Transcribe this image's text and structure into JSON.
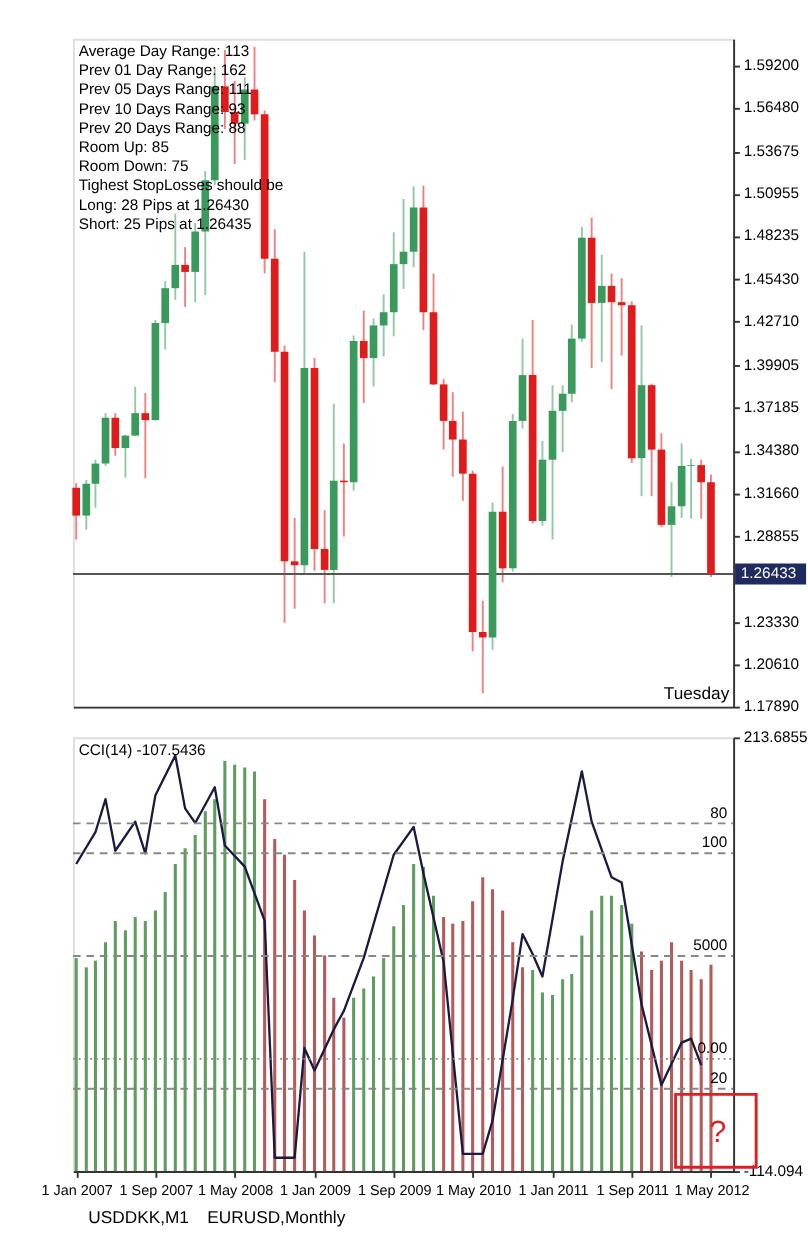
{
  "chart_data": [
    {
      "type": "candlestick",
      "x": [
        "2007-01",
        "2007-02",
        "2007-03",
        "2007-04",
        "2007-05",
        "2007-06",
        "2007-07",
        "2007-08",
        "2007-09",
        "2007-10",
        "2007-11",
        "2007-12",
        "2008-01",
        "2008-02",
        "2008-03",
        "2008-04",
        "2008-05",
        "2008-06",
        "2008-07",
        "2008-08",
        "2008-09",
        "2008-10",
        "2008-11",
        "2008-12",
        "2009-01",
        "2009-02",
        "2009-03",
        "2009-04",
        "2009-05",
        "2009-06",
        "2009-07",
        "2009-08",
        "2009-09",
        "2009-10",
        "2009-11",
        "2009-12",
        "2010-01",
        "2010-02",
        "2010-03",
        "2010-04",
        "2010-05",
        "2010-06",
        "2010-07",
        "2010-08",
        "2010-09",
        "2010-10",
        "2010-11",
        "2010-12",
        "2011-01",
        "2011-02",
        "2011-03",
        "2011-04",
        "2011-05",
        "2011-06",
        "2011-07",
        "2011-08",
        "2011-09",
        "2011-10",
        "2011-11",
        "2011-12",
        "2012-01",
        "2012-02",
        "2012-03",
        "2012-04",
        "2012-05"
      ],
      "ohlc": [
        [
          1.3199,
          1.3229,
          1.2865,
          1.302
        ],
        [
          1.302,
          1.325,
          1.293,
          1.3225
        ],
        [
          1.3225,
          1.338,
          1.307,
          1.3355
        ],
        [
          1.3355,
          1.368,
          1.334,
          1.365
        ],
        [
          1.365,
          1.368,
          1.3405,
          1.3455
        ],
        [
          1.3455,
          1.354,
          1.3265,
          1.3535
        ],
        [
          1.3535,
          1.385,
          1.3535,
          1.368
        ],
        [
          1.368,
          1.381,
          1.326,
          1.3635
        ],
        [
          1.3635,
          1.428,
          1.363,
          1.426
        ],
        [
          1.426,
          1.453,
          1.409,
          1.4485
        ],
        [
          1.4485,
          1.4965,
          1.441,
          1.4635
        ],
        [
          1.4635,
          1.475,
          1.4365,
          1.459
        ],
        [
          1.459,
          1.4905,
          1.4395,
          1.485
        ],
        [
          1.485,
          1.524,
          1.444,
          1.518
        ],
        [
          1.518,
          1.5905,
          1.515,
          1.5785
        ],
        [
          1.5785,
          1.602,
          1.551,
          1.562
        ],
        [
          1.562,
          1.582,
          1.5285,
          1.5545
        ],
        [
          1.5545,
          1.5845,
          1.531,
          1.5765
        ],
        [
          1.5765,
          1.604,
          1.5565,
          1.5605
        ],
        [
          1.5605,
          1.563,
          1.458,
          1.4675
        ],
        [
          1.4675,
          1.4865,
          1.388,
          1.4075
        ],
        [
          1.4075,
          1.4115,
          1.233,
          1.2725
        ],
        [
          1.2725,
          1.3005,
          1.242,
          1.27
        ],
        [
          1.27,
          1.472,
          1.2645,
          1.397
        ],
        [
          1.397,
          1.4035,
          1.2665,
          1.2805
        ],
        [
          1.2805,
          1.3055,
          1.2455,
          1.267
        ],
        [
          1.267,
          1.374,
          1.2455,
          1.3245
        ],
        [
          1.3245,
          1.3485,
          1.2885,
          1.3235
        ],
        [
          1.3235,
          1.418,
          1.318,
          1.4145
        ],
        [
          1.4145,
          1.434,
          1.3745,
          1.4035
        ],
        [
          1.4035,
          1.429,
          1.385,
          1.4245
        ],
        [
          1.4245,
          1.4445,
          1.4045,
          1.433
        ],
        [
          1.433,
          1.4845,
          1.4175,
          1.464
        ],
        [
          1.464,
          1.506,
          1.448,
          1.472
        ],
        [
          1.472,
          1.514,
          1.462,
          1.5005
        ],
        [
          1.5005,
          1.5145,
          1.4215,
          1.433
        ],
        [
          1.433,
          1.458,
          1.386,
          1.3865
        ],
        [
          1.3865,
          1.39,
          1.3445,
          1.363
        ],
        [
          1.363,
          1.3815,
          1.327,
          1.351
        ],
        [
          1.351,
          1.369,
          1.3115,
          1.329
        ],
        [
          1.329,
          1.331,
          1.2145,
          1.227
        ],
        [
          1.227,
          1.247,
          1.1875,
          1.2235
        ],
        [
          1.2235,
          1.3105,
          1.2155,
          1.3045
        ],
        [
          1.3045,
          1.3335,
          1.259,
          1.268
        ],
        [
          1.268,
          1.3675,
          1.266,
          1.363
        ],
        [
          1.363,
          1.416,
          1.358,
          1.3925
        ],
        [
          1.3925,
          1.428,
          1.297,
          1.2985
        ],
        [
          1.2985,
          1.35,
          1.2955,
          1.338
        ],
        [
          1.338,
          1.386,
          1.2865,
          1.3695
        ],
        [
          1.3695,
          1.386,
          1.343,
          1.3805
        ],
        [
          1.3805,
          1.425,
          1.375,
          1.416
        ],
        [
          1.416,
          1.488,
          1.414,
          1.481
        ],
        [
          1.481,
          1.494,
          1.397,
          1.439
        ],
        [
          1.439,
          1.47,
          1.401,
          1.45
        ],
        [
          1.45,
          1.458,
          1.3835,
          1.4395
        ],
        [
          1.4395,
          1.455,
          1.405,
          1.4375
        ],
        [
          1.4375,
          1.44,
          1.336,
          1.339
        ],
        [
          1.339,
          1.4245,
          1.3145,
          1.386
        ],
        [
          1.386,
          1.387,
          1.3145,
          1.3445
        ],
        [
          1.3445,
          1.355,
          1.2945,
          1.296
        ],
        [
          1.296,
          1.3235,
          1.2625,
          1.308
        ],
        [
          1.308,
          1.3485,
          1.3005,
          1.334
        ],
        [
          1.334,
          1.3385,
          1.3,
          1.3345
        ],
        [
          1.3345,
          1.338,
          1.3,
          1.3235
        ],
        [
          1.3235,
          1.3285,
          1.2625,
          1.2643
        ]
      ],
      "colors": [
        "#e01b1b",
        "#3a9a5c",
        "#3a9a5c",
        "#3a9a5c",
        "#e01b1b",
        "#3a9a5c",
        "#3a9a5c",
        "#e01b1b",
        "#3a9a5c",
        "#3a9a5c",
        "#3a9a5c",
        "#e01b1b",
        "#3a9a5c",
        "#3a9a5c",
        "#3a9a5c",
        "#e01b1b",
        "#e01b1b",
        "#3a9a5c",
        "#e01b1b",
        "#e01b1b",
        "#e01b1b",
        "#e01b1b",
        "#e01b1b",
        "#3a9a5c",
        "#e01b1b",
        "#e01b1b",
        "#3a9a5c",
        "#e01b1b",
        "#3a9a5c",
        "#e01b1b",
        "#3a9a5c",
        "#3a9a5c",
        "#3a9a5c",
        "#3a9a5c",
        "#3a9a5c",
        "#e01b1b",
        "#e01b1b",
        "#e01b1b",
        "#e01b1b",
        "#e01b1b",
        "#e01b1b",
        "#e01b1b",
        "#3a9a5c",
        "#e01b1b",
        "#3a9a5c",
        "#3a9a5c",
        "#e01b1b",
        "#3a9a5c",
        "#3a9a5c",
        "#3a9a5c",
        "#3a9a5c",
        "#3a9a5c",
        "#e01b1b",
        "#3a9a5c",
        "#e01b1b",
        "#e01b1b",
        "#e01b1b",
        "#3a9a5c",
        "#e01b1b",
        "#e01b1b",
        "#3a9a5c",
        "#3a9a5c",
        "#3a9a5c",
        "#e01b1b",
        "#e01b1b"
      ],
      "xlim": [
        "2006-12-22",
        "2012-07-08"
      ],
      "ylim": [
        1.1789,
        1.6092
      ],
      "yticks": [
        {
          "value": 1.592,
          "label": "1.59200"
        },
        {
          "value": 1.5648,
          "label": "1.56480"
        },
        {
          "value": 1.53675,
          "label": "1.53675"
        },
        {
          "value": 1.50955,
          "label": "1.50955"
        },
        {
          "value": 1.48235,
          "label": "1.48235"
        },
        {
          "value": 1.4543,
          "label": "1.45430"
        },
        {
          "value": 1.4271,
          "label": "1.42710"
        },
        {
          "value": 1.39905,
          "label": "1.39905"
        },
        {
          "value": 1.37185,
          "label": "1.37185"
        },
        {
          "value": 1.3438,
          "label": "1.34380"
        },
        {
          "value": 1.3166,
          "label": "1.31660"
        },
        {
          "value": 1.28855,
          "label": "1.28855"
        },
        {
          "value": 1.2333,
          "label": "1.23330"
        },
        {
          "value": 1.2061,
          "label": "1.20610"
        },
        {
          "value": 1.1789,
          "label": "1.17890"
        }
      ],
      "tick_labels": "y",
      "grid": false,
      "ref_lines": [
        {
          "axis": "y",
          "value": 1.26433,
          "label": "1.26433",
          "color": "#555555"
        }
      ],
      "annotations": [
        "Average Day Range: 113",
        "Prev 01 Day Range: 162",
        "Prev 05 Days Range: 111",
        "Prev 10 Days Range: 93",
        "Prev 20 Days Range: 88",
        "Room Up: 85",
        "Room Down: 75",
        "Tighest StopLosses should be",
        "Long: 28 Pips at 1.26430",
        "Short: 25 Pips at 1.26435",
        "Tuesday"
      ]
    },
    {
      "type": "bar",
      "x": [
        "2007-01",
        "2007-02",
        "2007-03",
        "2007-04",
        "2007-05",
        "2007-06",
        "2007-07",
        "2007-08",
        "2007-09",
        "2007-10",
        "2007-11",
        "2007-12",
        "2008-01",
        "2008-02",
        "2008-03",
        "2008-04",
        "2008-05",
        "2008-06",
        "2008-07",
        "2008-08",
        "2008-09",
        "2008-10",
        "2008-11",
        "2008-12",
        "2009-01",
        "2009-02",
        "2009-03",
        "2009-04",
        "2009-05",
        "2009-06",
        "2009-07",
        "2009-08",
        "2009-09",
        "2009-10",
        "2009-11",
        "2009-12",
        "2010-01",
        "2010-02",
        "2010-03",
        "2010-04",
        "2010-05",
        "2010-06",
        "2010-07",
        "2010-08",
        "2010-09",
        "2010-10",
        "2010-11",
        "2010-12",
        "2011-01",
        "2011-02",
        "2011-03",
        "2011-04",
        "2011-05",
        "2011-06",
        "2011-07",
        "2011-08",
        "2011-09",
        "2011-10",
        "2011-11",
        "2011-12",
        "2012-01",
        "2012-02",
        "2012-03",
        "2012-04",
        "2012-05"
      ],
      "xlim": [
        "2006-12-22",
        "2012-07-08"
      ],
      "ylim": [
        -114.094,
        213.6855
      ],
      "yticks": [
        {
          "value": 213.6855,
          "label": "213.6855"
        },
        {
          "value": -114.094,
          "label": "-114.094"
        }
      ],
      "ref_lines": [
        {
          "axis": "y",
          "value": 148.7,
          "line_style": "dashed"
        },
        {
          "axis": "y",
          "value": 126.1,
          "line_style": "dashed"
        },
        {
          "axis": "y",
          "value": 48.4,
          "line_style": "dashed"
        },
        {
          "axis": "y",
          "value": -29.3,
          "line_style": "dotted"
        },
        {
          "axis": "y",
          "value": -51.9,
          "line_style": "dashed"
        }
      ],
      "xticks": [
        {
          "value": "2007-01-01",
          "label": "1 Jan 2007"
        },
        {
          "value": "2007-09-01",
          "label": "1 Sep 2007"
        },
        {
          "value": "2008-05-01",
          "label": "1 May 2008"
        },
        {
          "value": "2009-01-01",
          "label": "1 Jan 2009"
        },
        {
          "value": "2009-09-01",
          "label": "1 Sep 2009"
        },
        {
          "value": "2010-05-01",
          "label": "1 May 2010"
        },
        {
          "value": "2011-01-01",
          "label": "1 Jan 2011"
        },
        {
          "value": "2011-09-01",
          "label": "1 Sep 2011"
        },
        {
          "value": "2012-05-01",
          "label": "1 May 2012"
        }
      ],
      "series": [
        {
          "type": "bar",
          "base": [
            -114.094,
            -114.094,
            -114.094,
            -114.094,
            -114.094,
            -114.094,
            -114.094,
            -114.094,
            -114.094,
            -114.094,
            -114.094,
            -114.094,
            -114.094,
            -114.094,
            -114.094,
            -114.094,
            -114.094,
            -114.094,
            -114.094,
            -114.094,
            -114.094,
            -114.094,
            -114.094,
            -114.094,
            -114.094,
            -114.094,
            -114.094,
            -114.094,
            -114.094,
            -114.094,
            -114.094,
            -114.094,
            -114.094,
            -114.094,
            -114.094,
            -114.094,
            -114.094,
            -114.094,
            -114.094,
            -114.094,
            -114.094,
            -114.094,
            -114.094,
            -114.094,
            -114.094,
            -114.094,
            -114.094,
            -114.094,
            -114.094,
            -114.094,
            -114.094,
            -114.094,
            -114.094,
            -114.094,
            -114.094,
            -114.094,
            -114.094,
            -114.094,
            -114.094,
            -114.094,
            -114.094,
            -114.094,
            -114.094,
            -114.094,
            -114.094
          ],
          "values": [
            161,
            154,
            159,
            173,
            189,
            182,
            192,
            189,
            197,
            211,
            232,
            244,
            254,
            272,
            281,
            310,
            307,
            305,
            302,
            281,
            251,
            239,
            220,
            197,
            178,
            163,
            131,
            116,
            131,
            138,
            147,
            161,
            185,
            201,
            232,
            230,
            208,
            192,
            187,
            189,
            204,
            222,
            213,
            197,
            173,
            154,
            152,
            135,
            133,
            145,
            149,
            178,
            197,
            208,
            208,
            201,
            187,
            166,
            152,
            159,
            173,
            159,
            152,
            145,
            156
          ],
          "colors": [
            "#5f9c5f",
            "#5f9c5f",
            "#5f9c5f",
            "#5f9c5f",
            "#5f9c5f",
            "#5f9c5f",
            "#5f9c5f",
            "#5f9c5f",
            "#5f9c5f",
            "#5f9c5f",
            "#5f9c5f",
            "#5f9c5f",
            "#5f9c5f",
            "#5f9c5f",
            "#5f9c5f",
            "#5f9c5f",
            "#5f9c5f",
            "#5f9c5f",
            "#5f9c5f",
            "#b45a5a",
            "#b45a5a",
            "#b45a5a",
            "#b45a5a",
            "#b45a5a",
            "#b45a5a",
            "#b45a5a",
            "#b45a5a",
            "#b45a5a",
            "#5f9c5f",
            "#5f9c5f",
            "#5f9c5f",
            "#5f9c5f",
            "#5f9c5f",
            "#5f9c5f",
            "#5f9c5f",
            "#5f9c5f",
            "#5f9c5f",
            "#b45a5a",
            "#b45a5a",
            "#b45a5a",
            "#b45a5a",
            "#b45a5a",
            "#b45a5a",
            "#b45a5a",
            "#b45a5a",
            "#b45a5a",
            "#5f9c5f",
            "#5f9c5f",
            "#5f9c5f",
            "#5f9c5f",
            "#5f9c5f",
            "#5f9c5f",
            "#5f9c5f",
            "#5f9c5f",
            "#5f9c5f",
            "#5f9c5f",
            "#5f9c5f",
            "#b45a5a",
            "#b45a5a",
            "#b45a5a",
            "#b45a5a",
            "#b45a5a",
            "#b45a5a",
            "#b45a5a",
            "#b45a5a"
          ]
        },
        {
          "type": "line",
          "color": "#1a1a40",
          "x": [
            "2007-01",
            "2007-03",
            "2007-04",
            "2007-05",
            "2007-07",
            "2007-08",
            "2007-09",
            "2007-11",
            "2007-12",
            "2008-01",
            "2008-03",
            "2008-04",
            "2008-06",
            "2008-08",
            "2008-09",
            "2008-11",
            "2008-12",
            "2009-01",
            "2009-03",
            "2009-04",
            "2009-06",
            "2009-09",
            "2009-11",
            "2009-12",
            "2010-02",
            "2010-04",
            "2010-06",
            "2010-07",
            "2010-09",
            "2010-10",
            "2010-11",
            "2010-12",
            "2011-02",
            "2011-04",
            "2011-05",
            "2011-07",
            "2011-08",
            "2011-10",
            "2011-12",
            "2012-02",
            "2012-03",
            "2012-04"
          ],
          "values": [
            118,
            142,
            167,
            128,
            150,
            126,
            170,
            200,
            160,
            149,
            176,
            132,
            116,
            75,
            -104,
            -104,
            -21,
            -38,
            -7,
            7,
            47,
            125,
            146,
            111,
            44,
            -101,
            -101,
            -76,
            16,
            65,
            50,
            33,
            120,
            188,
            150,
            108,
            104,
            12,
            -49,
            -17,
            -14,
            -34
          ]
        }
      ],
      "annotations": [
        "CCI(14) -107.5436",
        "?",
        "USDDKK,M1",
        "EURUSD,Monthly",
        "80",
        "100",
        "5000",
        "0.00",
        "20"
      ]
    }
  ]
}
